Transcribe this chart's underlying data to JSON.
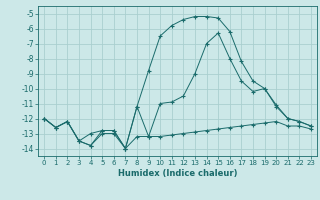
{
  "xlabel": "Humidex (Indice chaleur)",
  "x": [
    0,
    1,
    2,
    3,
    4,
    5,
    6,
    7,
    8,
    9,
    10,
    11,
    12,
    13,
    14,
    15,
    16,
    17,
    18,
    19,
    20,
    21,
    22,
    23
  ],
  "line1": [
    -12.0,
    -12.6,
    -12.2,
    -13.5,
    -13.8,
    -13.0,
    -13.0,
    -14.0,
    -13.2,
    -13.2,
    -13.2,
    -13.1,
    -13.0,
    -12.9,
    -12.8,
    -12.7,
    -12.6,
    -12.5,
    -12.4,
    -12.3,
    -12.2,
    -12.5,
    -12.5,
    -12.7
  ],
  "line2": [
    -12.0,
    -12.6,
    -12.2,
    -13.5,
    -13.0,
    -12.8,
    -12.8,
    -14.0,
    -11.2,
    -13.2,
    -11.0,
    -10.9,
    -10.5,
    -9.0,
    -7.0,
    -6.3,
    -8.0,
    -9.5,
    -10.2,
    -10.0,
    -11.2,
    -12.0,
    -12.2,
    -12.5
  ],
  "line3": [
    -12.0,
    -12.6,
    -12.2,
    -13.5,
    -13.8,
    -12.8,
    -12.8,
    -14.0,
    -11.2,
    -8.8,
    -6.5,
    -5.8,
    -5.4,
    -5.2,
    -5.2,
    -5.3,
    -6.2,
    -8.2,
    -9.5,
    -10.0,
    -11.1,
    -12.0,
    -12.2,
    -12.5
  ],
  "bg_color": "#cce8e8",
  "grid_color": "#aacfcf",
  "line_color": "#1a6b6b",
  "ylim": [
    -14.5,
    -4.5
  ],
  "xlim": [
    -0.5,
    23.5
  ],
  "yticks": [
    -5,
    -6,
    -7,
    -8,
    -9,
    -10,
    -11,
    -12,
    -13,
    -14
  ],
  "xticks": [
    0,
    1,
    2,
    3,
    4,
    5,
    6,
    7,
    8,
    9,
    10,
    11,
    12,
    13,
    14,
    15,
    16,
    17,
    18,
    19,
    20,
    21,
    22,
    23
  ]
}
